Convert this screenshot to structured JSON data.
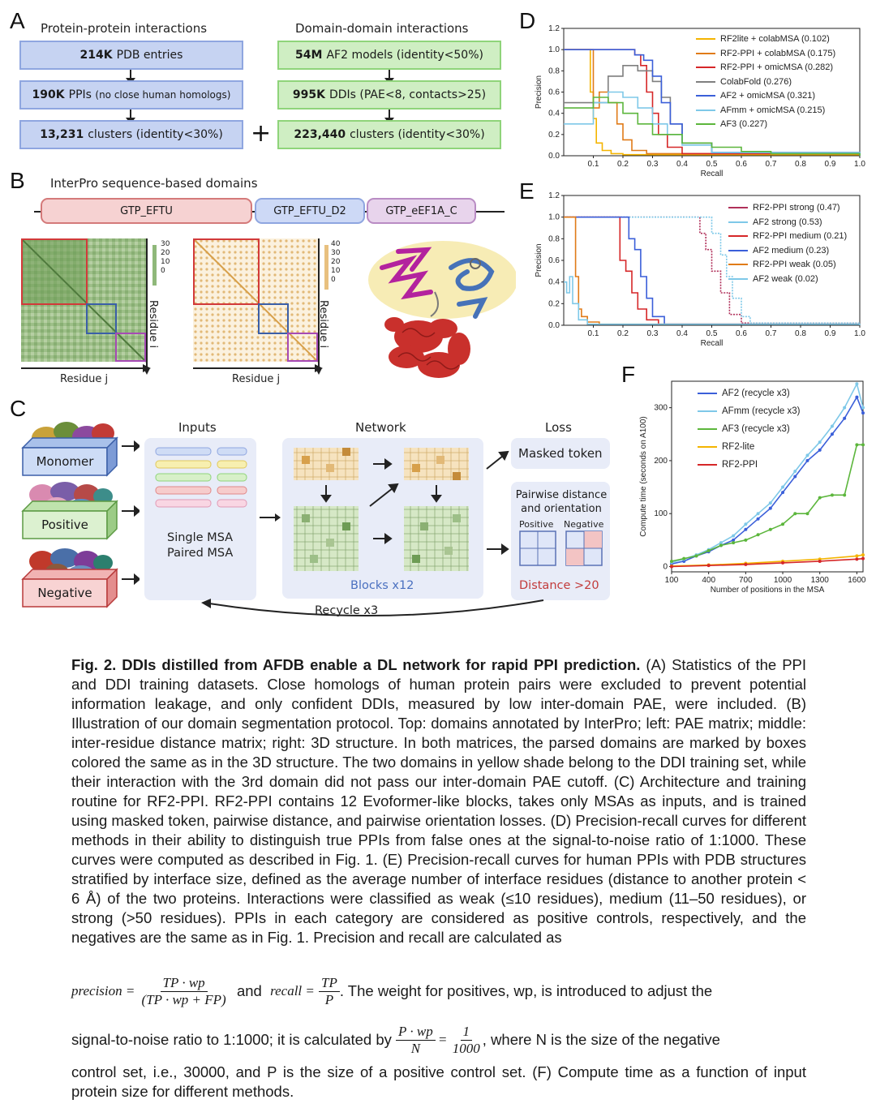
{
  "panelA": {
    "letter": "A",
    "left_header": "Protein-protein interactions",
    "right_header": "Domain-domain interactions",
    "left_boxes": [
      {
        "bold": "214K",
        "text": "PDB entries",
        "small": ""
      },
      {
        "bold": "190K",
        "text": "PPIs",
        "small": "(no close human homologs)"
      },
      {
        "bold": "13,231",
        "text": "clusters (identity<30%)",
        "small": ""
      }
    ],
    "right_boxes": [
      {
        "bold": "54M",
        "text": "AF2 models (identity<50%)"
      },
      {
        "bold": "995K",
        "text": "DDIs (PAE<8, contacts>25)"
      },
      {
        "bold": "223,440",
        "text": "clusters (identity<30%)"
      }
    ],
    "plus": "+"
  },
  "panelB": {
    "letter": "B",
    "header": "InterPro sequence-based domains",
    "domains": [
      "GTP_EFTU",
      "GTP_EFTU_D2",
      "GTP_eEF1A_C"
    ],
    "pae_scale": [
      "30",
      "20",
      "10",
      "0"
    ],
    "dist_scale": [
      "40",
      "30",
      "20",
      "10",
      "0"
    ],
    "xlabel": "Residue j",
    "ylabel": "Residue i"
  },
  "panelC": {
    "letter": "C",
    "inputs_title": "Inputs",
    "network_title": "Network",
    "loss_title": "Loss",
    "sets": [
      "Monomer",
      "Positive",
      "Negative"
    ],
    "msa_lines": [
      "Single MSA",
      "Paired MSA"
    ],
    "blocks": "Blocks x12",
    "masked_token": "Masked token",
    "pairwise_title": "Pairwise distance and orientation",
    "positive": "Positive",
    "negative": "Negative",
    "distance": "Distance >20",
    "recycle": "Recycle x3"
  },
  "colors": {
    "rf2lite": "#f4b400",
    "rf2ppi_colab": "#e07b18",
    "rf2ppi_omic": "#d62728",
    "colabfold": "#7f7f7f",
    "af2": "#3b5fd9",
    "afmm": "#7ec8e8",
    "af3": "#5cb63c",
    "rf2ppi_strong": "#b0305a"
  },
  "chart_data": [
    {
      "id": "D",
      "type": "line",
      "letter": "D",
      "title": "",
      "xlabel": "Recall",
      "ylabel": "Precision",
      "xlim": [
        0,
        1.0
      ],
      "ylim": [
        0,
        1.2
      ],
      "xticks": [
        "0.1",
        "0.2",
        "0.3",
        "0.4",
        "0.5",
        "0.6",
        "0.7",
        "0.8",
        "0.9",
        "1.0"
      ],
      "yticks": [
        "0.0",
        "0.2",
        "0.4",
        "0.6",
        "0.8",
        "1.0",
        "1.2"
      ],
      "series": [
        {
          "name": "RF2lite + colabMSA (0.102)",
          "color": "#f4b400",
          "x": [
            0,
            0.08,
            0.09,
            0.1,
            0.11,
            0.13,
            0.16,
            0.2,
            1.0
          ],
          "y": [
            1.0,
            1.0,
            0.6,
            0.35,
            0.12,
            0.05,
            0.02,
            0.01,
            0.0
          ]
        },
        {
          "name": "RF2-PPI + colabMSA (0.175)",
          "color": "#e07b18",
          "x": [
            0,
            0.1,
            0.12,
            0.15,
            0.18,
            0.2,
            0.23,
            0.28,
            1.0
          ],
          "y": [
            1.0,
            0.45,
            0.6,
            0.5,
            0.3,
            0.15,
            0.05,
            0.02,
            0.0
          ]
        },
        {
          "name": "RF2-PPI + omicMSA (0.282)",
          "color": "#d62728",
          "x": [
            0,
            0.22,
            0.24,
            0.26,
            0.28,
            0.3,
            0.32,
            0.35,
            0.4,
            1.0
          ],
          "y": [
            1.0,
            1.0,
            0.95,
            0.85,
            0.6,
            0.4,
            0.2,
            0.08,
            0.02,
            0.0
          ]
        },
        {
          "name": "ColabFold (0.276)",
          "color": "#7f7f7f",
          "x": [
            0,
            0.15,
            0.2,
            0.25,
            0.3,
            0.33,
            0.36,
            0.4,
            0.5,
            1.0
          ],
          "y": [
            0.5,
            0.75,
            0.85,
            0.8,
            0.7,
            0.55,
            0.3,
            0.12,
            0.03,
            0.0
          ]
        },
        {
          "name": "AF2 + omicMSA (0.321)",
          "color": "#3b5fd9",
          "x": [
            0,
            0.2,
            0.24,
            0.27,
            0.3,
            0.33,
            0.36,
            0.4,
            0.5,
            1.0
          ],
          "y": [
            1.0,
            1.0,
            0.95,
            0.9,
            0.75,
            0.5,
            0.3,
            0.12,
            0.03,
            0.0
          ]
        },
        {
          "name": "AFmm + omicMSA (0.215)",
          "color": "#7ec8e8",
          "x": [
            0,
            0.1,
            0.15,
            0.2,
            0.25,
            0.3,
            0.35,
            0.4,
            0.5,
            1.0
          ],
          "y": [
            0.3,
            0.5,
            0.6,
            0.55,
            0.45,
            0.3,
            0.2,
            0.1,
            0.03,
            0.0
          ]
        },
        {
          "name": "AF3 (0.227)",
          "color": "#5cb63c",
          "x": [
            0,
            0.1,
            0.15,
            0.2,
            0.25,
            0.3,
            0.4,
            0.5,
            0.6,
            0.7,
            1.0
          ],
          "y": [
            0.45,
            0.55,
            0.5,
            0.4,
            0.3,
            0.2,
            0.12,
            0.08,
            0.04,
            0.02,
            0.0
          ]
        }
      ]
    },
    {
      "id": "E",
      "type": "line",
      "letter": "E",
      "title": "",
      "xlabel": "Recall",
      "ylabel": "Precision",
      "xlim": [
        0,
        1.0
      ],
      "ylim": [
        0,
        1.2
      ],
      "xticks": [
        "0.1",
        "0.2",
        "0.3",
        "0.4",
        "0.5",
        "0.6",
        "0.7",
        "0.8",
        "0.9",
        "1.0"
      ],
      "yticks": [
        "0.0",
        "0.2",
        "0.4",
        "0.6",
        "0.8",
        "1.0",
        "1.2"
      ],
      "series": [
        {
          "name": "RF2-PPI strong (0.47)",
          "color": "#b0305a",
          "x": [
            0,
            0.43,
            0.46,
            0.48,
            0.5,
            0.53,
            0.56,
            0.6,
            1.0
          ],
          "y": [
            1.0,
            1.0,
            0.85,
            0.7,
            0.5,
            0.3,
            0.1,
            0.02,
            0.0
          ]
        },
        {
          "name": "AF2 strong (0.53)",
          "color": "#7ec8e8",
          "x": [
            0,
            0.47,
            0.5,
            0.53,
            0.55,
            0.57,
            0.6,
            0.63,
            1.0
          ],
          "y": [
            1.0,
            1.0,
            0.85,
            0.65,
            0.45,
            0.25,
            0.08,
            0.02,
            0.0
          ]
        },
        {
          "name": "RF2-PPI medium (0.21)",
          "color": "#d62728",
          "x": [
            0,
            0.17,
            0.19,
            0.21,
            0.23,
            0.25,
            0.28,
            0.32,
            1.0
          ],
          "y": [
            1.0,
            1.0,
            0.6,
            0.5,
            0.3,
            0.15,
            0.05,
            0.01,
            0.0
          ]
        },
        {
          "name": "AF2 medium (0.23)",
          "color": "#3b5fd9",
          "x": [
            0,
            0.2,
            0.22,
            0.24,
            0.26,
            0.28,
            0.3,
            0.34,
            1.0
          ],
          "y": [
            1.0,
            1.0,
            0.8,
            0.7,
            0.45,
            0.25,
            0.08,
            0.01,
            0.0
          ]
        },
        {
          "name": "RF2-PPI weak (0.05)",
          "color": "#e07b18",
          "x": [
            0,
            0.03,
            0.04,
            0.05,
            0.06,
            0.08,
            0.12,
            1.0
          ],
          "y": [
            1.0,
            1.0,
            0.45,
            0.15,
            0.08,
            0.03,
            0.01,
            0.0
          ]
        },
        {
          "name": "AF2 weak (0.02)",
          "color": "#7ec8e8",
          "x": [
            0,
            0.01,
            0.02,
            0.03,
            0.05,
            0.08,
            1.0
          ],
          "y": [
            0.4,
            0.3,
            0.45,
            0.2,
            0.05,
            0.01,
            0.0
          ]
        }
      ]
    },
    {
      "id": "F",
      "type": "line",
      "letter": "F",
      "title": "",
      "xlabel": "Number of positions in the MSA",
      "ylabel": "Compute time (seconds on A100)",
      "xlim": [
        100,
        1650
      ],
      "ylim": [
        -10,
        350
      ],
      "xticks": [
        "100",
        "400",
        "700",
        "1000",
        "1300",
        "1600"
      ],
      "yticks": [
        "0",
        "100",
        "200",
        "300"
      ],
      "series": [
        {
          "name": "AF2 (recycle x3)",
          "color": "#3b5fd9",
          "x": [
            100,
            200,
            300,
            400,
            500,
            600,
            700,
            800,
            900,
            1000,
            1100,
            1200,
            1300,
            1400,
            1500,
            1600,
            1650
          ],
          "y": [
            5,
            10,
            20,
            28,
            40,
            50,
            70,
            90,
            110,
            140,
            170,
            200,
            220,
            250,
            280,
            320,
            290
          ]
        },
        {
          "name": "AFmm (recycle x3)",
          "color": "#7ec8e8",
          "x": [
            100,
            200,
            300,
            400,
            500,
            600,
            700,
            800,
            900,
            1000,
            1100,
            1200,
            1300,
            1400,
            1500,
            1600,
            1650
          ],
          "y": [
            8,
            14,
            22,
            32,
            45,
            58,
            80,
            100,
            120,
            150,
            180,
            210,
            235,
            265,
            300,
            345,
            300
          ]
        },
        {
          "name": "AF3 (recycle x3)",
          "color": "#5cb63c",
          "x": [
            100,
            200,
            300,
            400,
            500,
            600,
            700,
            800,
            900,
            1000,
            1100,
            1200,
            1300,
            1400,
            1500,
            1600,
            1650
          ],
          "y": [
            10,
            15,
            20,
            30,
            40,
            45,
            50,
            60,
            70,
            80,
            100,
            100,
            130,
            135,
            135,
            230,
            230
          ]
        },
        {
          "name": "RF2-lite",
          "color": "#f4b400",
          "x": [
            100,
            400,
            700,
            1000,
            1300,
            1600,
            1650
          ],
          "y": [
            1,
            3,
            6,
            10,
            14,
            20,
            22
          ]
        },
        {
          "name": "RF2-PPI",
          "color": "#d62728",
          "x": [
            100,
            400,
            700,
            1000,
            1300,
            1600,
            1650
          ],
          "y": [
            0,
            2,
            4,
            7,
            10,
            14,
            15
          ]
        }
      ]
    }
  ],
  "caption": {
    "title": "Fig. 2. DDIs distilled from AFDB enable a DL network for rapid PPI prediction.",
    "p1": "(A) Statistics of the PPI and DDI training datasets. Close homologs of human protein pairs were excluded to prevent potential information leakage, and only confident DDIs, measured by low inter-domain PAE, were included. (B) Illustration of our domain segmentation protocol. Top: domains annotated by InterPro; left: PAE matrix; middle: inter-residue distance matrix; right: 3D structure. In both matrices, the parsed domains are marked by boxes colored the same as in the 3D structure. The two domains in yellow shade belong to the DDI training set, while their interaction with the 3rd domain did not pass our inter-domain PAE cutoff. (C) Architecture and training routine for RF2-PPI. RF2-PPI contains 12 Evoformer-like blocks, takes only MSAs as inputs, and is trained using masked token, pairwise distance, and pairwise orientation losses. (D) Precision-recall curves for different methods in their ability to distinguish true PPIs from false ones at the signal-to-noise ratio of 1:1000. These curves were computed as described in Fig. 1. (E) Precision-recall curves for human PPIs with PDB structures stratified by interface size, defined as the average number of interface residues (distance to another protein < 6 Å) of the two proteins. Interactions were classified as weak (≤10 residues), medium (11–50 residues), or strong (>50 residues). PPIs in each category are considered as positive controls, respectively, and the negatives are the same as in Fig. 1. Precision and recall are calculated as",
    "eq1_lhs": "precision =",
    "eq1_num": "TP · wp",
    "eq1_den": "(TP · wp + FP)",
    "and": "and",
    "eq2_lhs": "recall =",
    "eq2_num": "TP",
    "eq2_den": "P",
    "p2": ". The weight for positives, wp, is introduced to adjust the",
    "p3": "signal-to-noise ratio to 1:1000; it is calculated by",
    "eq3_num": "P · wp",
    "eq3_den": "N",
    "eq4_num": "1",
    "eq4_den": "1000",
    "p4": ", where N is the size of the negative",
    "p5": "control set, i.e., 30000, and P is the size of a positive control set. (F) Compute time as a function of input protein size for different methods."
  }
}
